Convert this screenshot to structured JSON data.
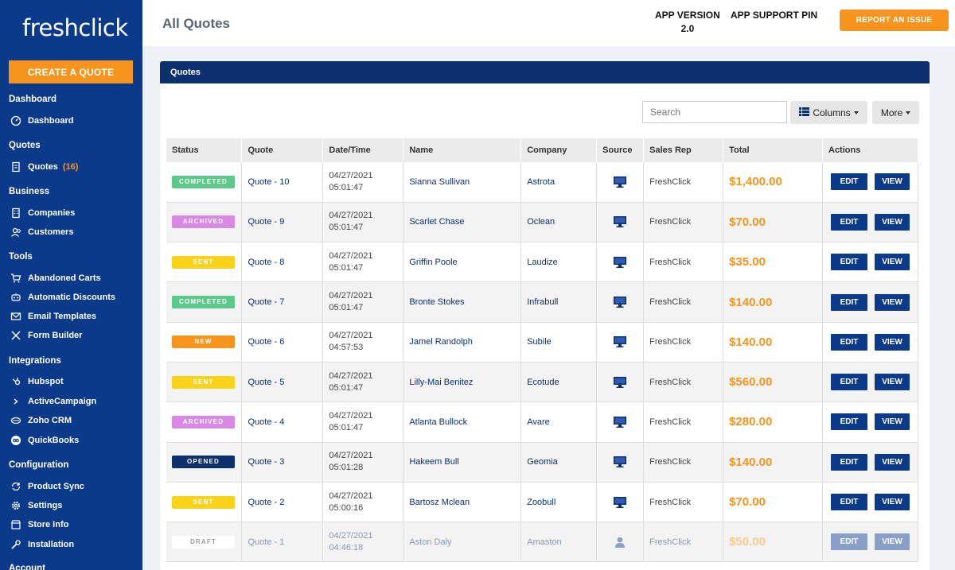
{
  "sidebar": {
    "logo": "freshclick",
    "create_label": "CREATE A QUOTE",
    "sections": {
      "dashboard": "Dashboard",
      "quotes": "Quotes",
      "business": "Business",
      "tools": "Tools",
      "integrations": "Integrations",
      "configuration": "Configuration",
      "account": "Account"
    },
    "items": {
      "dashboard": "Dashboard",
      "quotes": "Quotes",
      "quotes_count": "(16)",
      "companies": "Companies",
      "customers": "Customers",
      "abandoned_carts": "Abandoned Carts",
      "automatic_discounts": "Automatic Discounts",
      "email_templates": "Email Templates",
      "form_builder": "Form Builder",
      "hubspot": "Hubspot",
      "activecampaign": "ActiveCampaign",
      "zoho": "Zoho CRM",
      "quickbooks": "QuickBooks",
      "product_sync": "Product Sync",
      "settings": "Settings",
      "store_info": "Store Info",
      "installation": "Installation"
    }
  },
  "header": {
    "title": "All Quotes",
    "app_version_label": "APP VERSION",
    "app_version_value": "2.0",
    "support_pin_label": "APP SUPPORT PIN",
    "report_label": "REPORT AN ISSUE"
  },
  "panel": {
    "title": "Quotes",
    "search_placeholder": "Search",
    "columns_label": "Columns",
    "more_label": "More"
  },
  "table": {
    "headers": [
      "Status",
      "Quote",
      "Date/Time",
      "Name",
      "Company",
      "Source",
      "Sales Rep",
      "Total",
      "Actions"
    ],
    "edit_label": "EDIT",
    "view_label": "VIEW",
    "rows": [
      {
        "status": "COMPLETED",
        "quote": "Quote - 10",
        "date": "04/27/2021",
        "time": "05:01:47",
        "name": "Sianna Sullivan",
        "company": "Astrota",
        "source": "desktop-icon",
        "rep": "FreshClick",
        "total": "$1,400.00"
      },
      {
        "status": "ARCHIVED",
        "quote": "Quote - 9",
        "date": "04/27/2021",
        "time": "05:01:47",
        "name": "Scarlet Chase",
        "company": "Oclean",
        "source": "desktop-icon",
        "rep": "FreshClick",
        "total": "$70.00"
      },
      {
        "status": "SENT",
        "quote": "Quote - 8",
        "date": "04/27/2021",
        "time": "05:01:47",
        "name": "Griffin Poole",
        "company": "Laudize",
        "source": "desktop-icon",
        "rep": "FreshClick",
        "total": "$35.00"
      },
      {
        "status": "COMPLETED",
        "quote": "Quote - 7",
        "date": "04/27/2021",
        "time": "05:01:47",
        "name": "Bronte Stokes",
        "company": "Infrabull",
        "source": "desktop-icon",
        "rep": "FreshClick",
        "total": "$140.00"
      },
      {
        "status": "NEW",
        "quote": "Quote - 6",
        "date": "04/27/2021",
        "time": "04:57:53",
        "name": "Jamel Randolph",
        "company": "Subile",
        "source": "desktop-icon",
        "rep": "FreshClick",
        "total": "$140.00"
      },
      {
        "status": "SENT",
        "quote": "Quote - 5",
        "date": "04/27/2021",
        "time": "05:01:47",
        "name": "Lilly-Mai Benitez",
        "company": "Ecotude",
        "source": "desktop-icon",
        "rep": "FreshClick",
        "total": "$560.00"
      },
      {
        "status": "ARCHIVED",
        "quote": "Quote - 4",
        "date": "04/27/2021",
        "time": "05:01:47",
        "name": "Atlanta Bullock",
        "company": "Avare",
        "source": "desktop-icon",
        "rep": "FreshClick",
        "total": "$280.00"
      },
      {
        "status": "OPENED",
        "quote": "Quote - 3",
        "date": "04/27/2021",
        "time": "05:01:28",
        "name": "Hakeem Bull",
        "company": "Geomia",
        "source": "desktop-icon",
        "rep": "FreshClick",
        "total": "$140.00"
      },
      {
        "status": "SENT",
        "quote": "Quote - 2",
        "date": "04/27/2021",
        "time": "05:00:16",
        "name": "Bartosz Mclean",
        "company": "Zoobull",
        "source": "desktop-icon",
        "rep": "FreshClick",
        "total": "$70.00"
      },
      {
        "status": "DRAFT",
        "quote": "Quote - 1",
        "date": "04/27/2021",
        "time": "04:46:18",
        "name": "Aston Daly",
        "company": "Amaston",
        "source": "user-icon",
        "rep": "FreshClick",
        "total": "$50.00"
      }
    ]
  },
  "status_colors": {
    "COMPLETED": "#5cc88a",
    "ARCHIVED": "#d889e3",
    "SENT": "#f9d31a",
    "NEW": "#f7941d",
    "OPENED": "#0c2f6e",
    "DRAFT": "#ffffff"
  },
  "colors": {
    "brand": "#0c3a8a",
    "accent": "#f7941d"
  }
}
